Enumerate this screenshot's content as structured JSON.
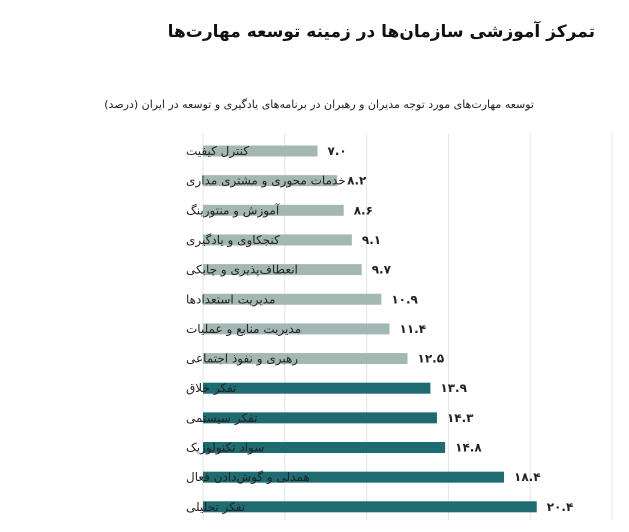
{
  "header": {
    "title": "تمرکز آموزشی سازمان‌ها در زمینه توسعه مهارت‌ها"
  },
  "chart_data": {
    "type": "bar",
    "orientation": "horizontal",
    "title": "تمرکز آموزشی سازمان‌ها در زمینه توسعه مهارت‌ها",
    "subtitle": "توسعه مهارت‌های مورد توجه مدیران و رهبران در برنامه‌های یادگیری و توسعه در ایران (درصد)",
    "xlim": [
      0,
      25
    ],
    "grid": true,
    "colors": {
      "light": "#a3b8b3",
      "dark": "#1f6b72"
    },
    "categories": [
      "کنترل کیفیت",
      "خدمات محوری و مشتری مداری",
      "آموزش و منتورینگ",
      "کنجکاوی و یادگیری",
      "انعطاف‌پذیری و چابکی",
      "مدیریت استعدادها",
      "مدیریت منابع و عملیات",
      "رهبری و نفوذ اجتماعی",
      "تفکر خلاق",
      "تفکر سیستمی",
      "سواد تکنولوژیک",
      "همدلی و گوش‌دادن فعال",
      "تفکر تحلیلی"
    ],
    "values": [
      7.0,
      8.2,
      8.6,
      9.1,
      9.7,
      10.9,
      11.4,
      12.5,
      13.9,
      14.3,
      14.8,
      18.4,
      20.4
    ],
    "value_labels": [
      "۷.۰",
      "۸.۲",
      "۸.۶",
      "۹.۱",
      "۹.۷",
      "۱۰.۹",
      "۱۱.۴",
      "۱۲.۵",
      "۱۳.۹",
      "۱۴.۳",
      "۱۴.۸",
      "۱۸.۴",
      "۲۰.۴"
    ],
    "highlighted": [
      false,
      false,
      false,
      false,
      false,
      false,
      false,
      false,
      true,
      true,
      true,
      true,
      true
    ]
  }
}
